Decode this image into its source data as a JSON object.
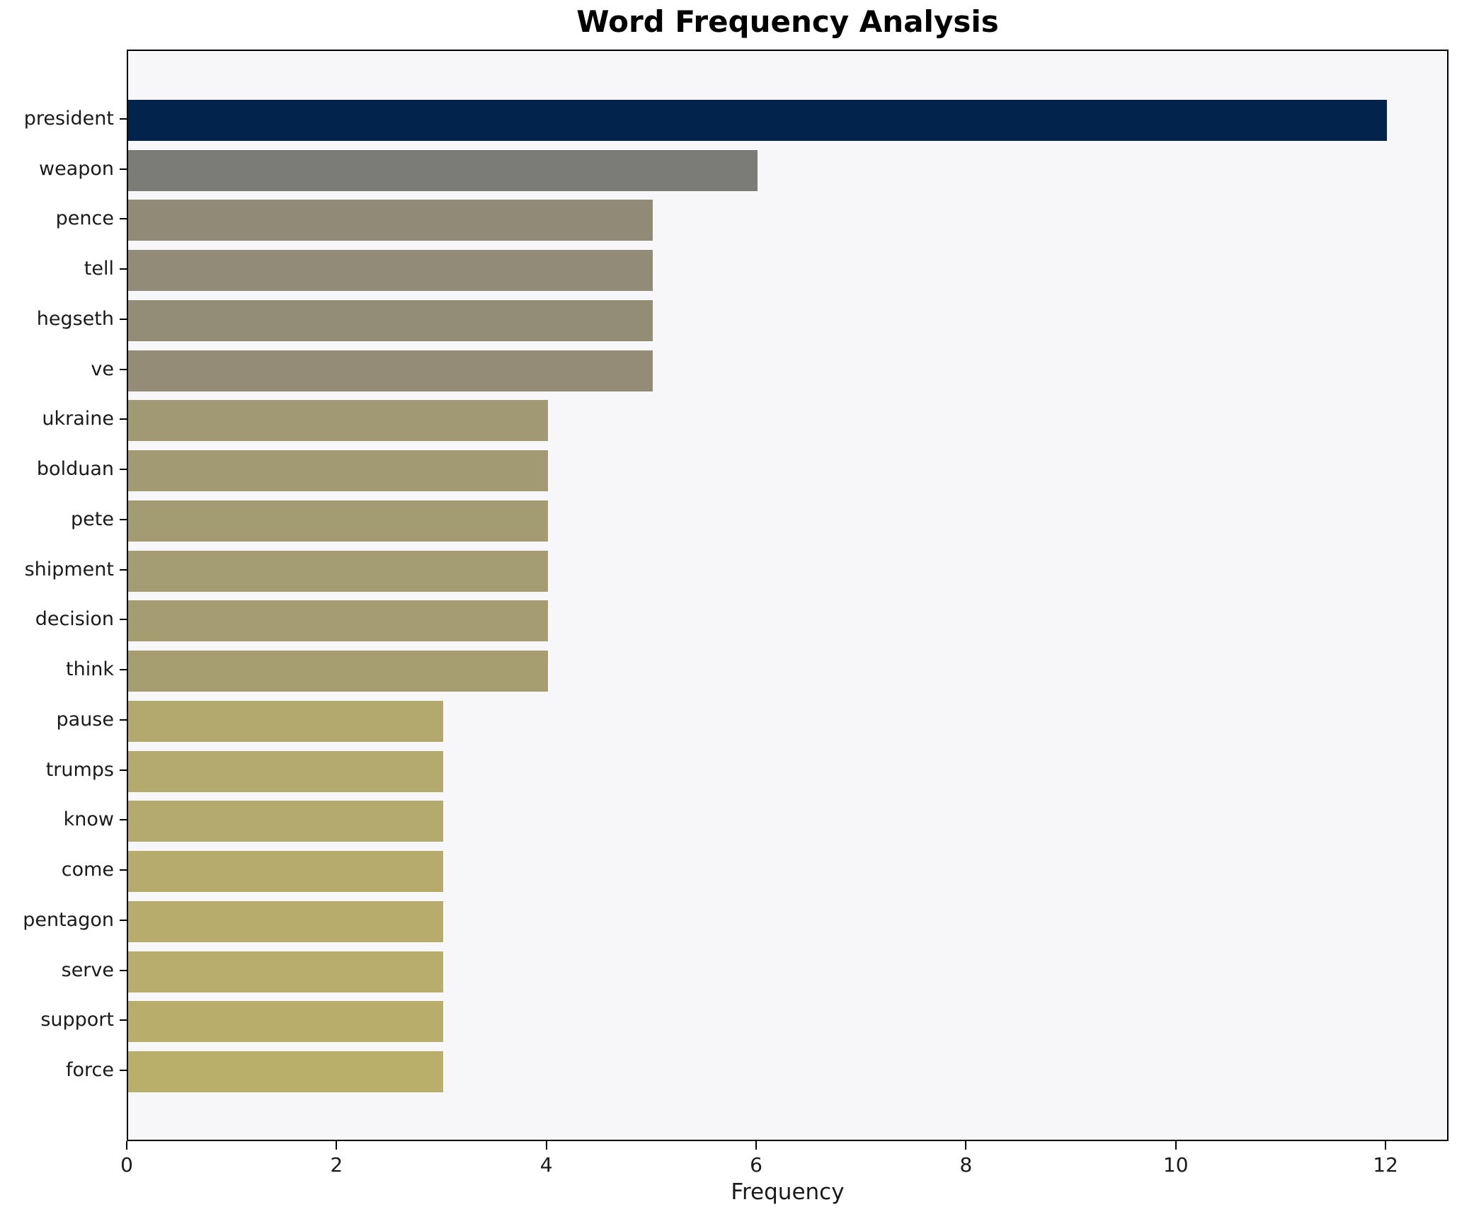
{
  "title": "Word Frequency Analysis",
  "chart_data": {
    "type": "bar",
    "orientation": "horizontal",
    "title": "Word Frequency Analysis",
    "xlabel": "Frequency",
    "ylabel": "",
    "categories": [
      "president",
      "weapon",
      "pence",
      "tell",
      "hegseth",
      "ve",
      "ukraine",
      "bolduan",
      "pete",
      "shipment",
      "decision",
      "think",
      "pause",
      "trumps",
      "know",
      "come",
      "pentagon",
      "serve",
      "support",
      "force"
    ],
    "values": [
      12,
      6,
      5,
      5,
      5,
      5,
      4,
      4,
      4,
      4,
      4,
      4,
      3,
      3,
      3,
      3,
      3,
      3,
      3,
      3
    ],
    "bar_colors": [
      "#02234c",
      "#7b7b78",
      "#918a77",
      "#928b77",
      "#938c76",
      "#948c76",
      "#a19973",
      "#a29a73",
      "#a39b72",
      "#a49c72",
      "#a59c71",
      "#a69d71",
      "#b3a96e",
      "#b4aa6e",
      "#b5aa6d",
      "#b6ab6d",
      "#b7ac6c",
      "#b8ad6c",
      "#b9ad6b",
      "#baae6b"
    ],
    "x_ticks": [
      0,
      2,
      4,
      6,
      8,
      10,
      12
    ],
    "xlim": [
      0,
      12.6
    ],
    "grid": false,
    "legend": "none",
    "plot_background": "#f7f7f9",
    "page_background": "#ffffff",
    "spine_color": "#000000",
    "text_color": "#1a1a1a"
  }
}
